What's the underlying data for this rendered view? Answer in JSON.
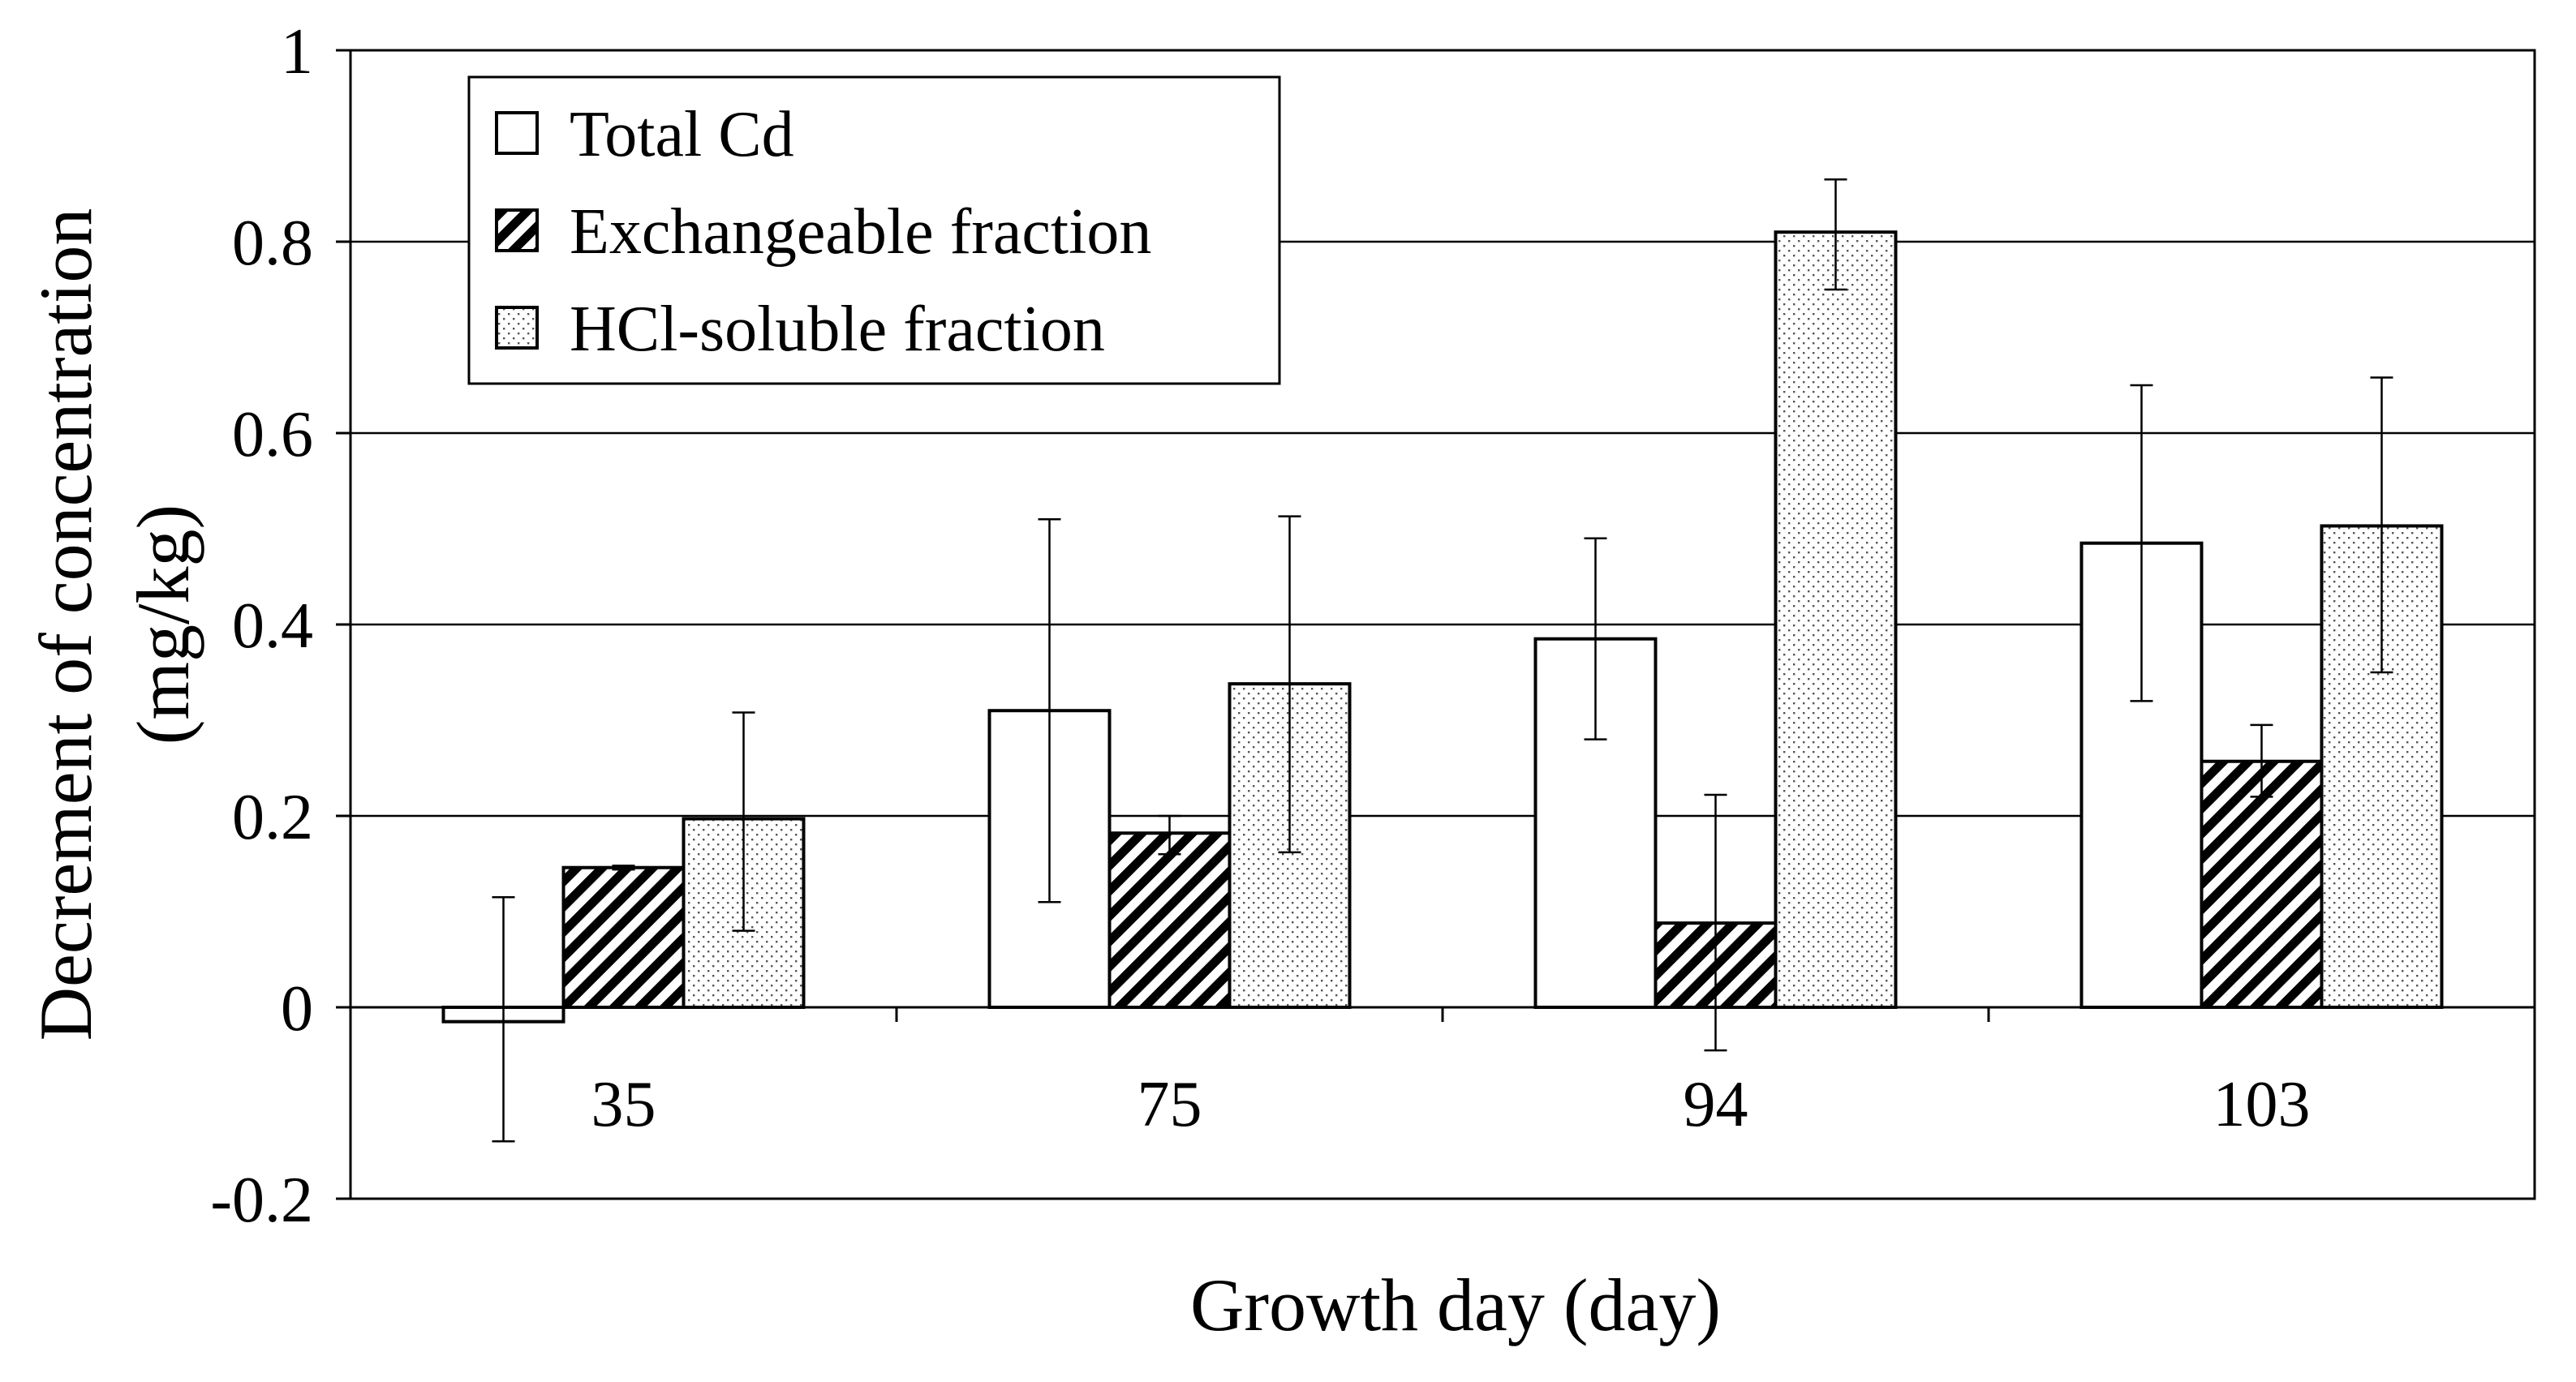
{
  "chart_data": {
    "type": "bar",
    "title": "",
    "xlabel": "Growth day (day)",
    "ylabel_line1": "Decrement of concentration",
    "ylabel_line2": "(mg/kg)",
    "ylim": [
      -0.2,
      1
    ],
    "yticks": [
      -0.2,
      0,
      0.2,
      0.4,
      0.6,
      0.8,
      1
    ],
    "ytick_labels": [
      "-0.2",
      "0",
      "0.2",
      "0.4",
      "0.6",
      "0.8",
      "1"
    ],
    "gridlines": [
      0.2,
      0.4,
      0.6,
      0.8
    ],
    "categories": [
      "35",
      "75",
      "94",
      "103"
    ],
    "legend_position": "top-left",
    "series": [
      {
        "name": "Total Cd",
        "pattern": "solid-white",
        "values": [
          -0.015,
          0.31,
          0.385,
          0.485
        ],
        "error_low": [
          -0.14,
          0.11,
          0.28,
          0.32
        ],
        "error_high": [
          0.115,
          0.51,
          0.49,
          0.65
        ]
      },
      {
        "name": "Exchangeable fraction",
        "pattern": "diagonal-hatch",
        "values": [
          0.146,
          0.182,
          0.088,
          0.257
        ],
        "error_low": [
          0.144,
          0.16,
          -0.045,
          0.22
        ],
        "error_high": [
          0.148,
          0.2,
          0.222,
          0.295
        ]
      },
      {
        "name": "HCl-soluble fraction",
        "pattern": "dots",
        "values": [
          0.197,
          0.338,
          0.81,
          0.503
        ],
        "error_low": [
          0.08,
          0.162,
          0.75,
          0.35
        ],
        "error_high": [
          0.308,
          0.513,
          0.865,
          0.658
        ]
      }
    ]
  }
}
